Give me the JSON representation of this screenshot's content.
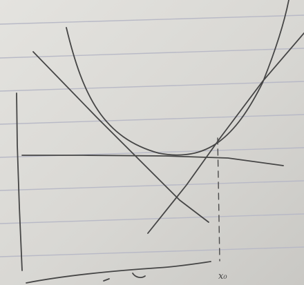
{
  "sketch": {
    "x_marker_label": "x₀"
  }
}
